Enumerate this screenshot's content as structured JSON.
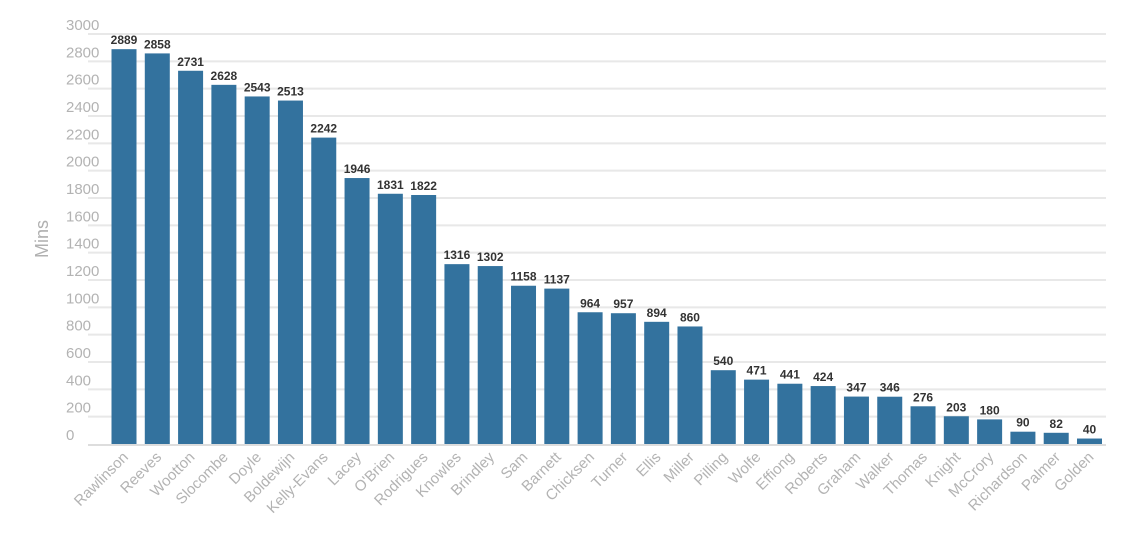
{
  "chart_data": {
    "type": "bar",
    "title": "",
    "xlabel": "",
    "ylabel": "Mins",
    "categories": [
      "Rawlinson",
      "Reeves",
      "Wootton",
      "Slocombe",
      "Doyle",
      "Boldewijn",
      "Kelly-Evans",
      "Lacey",
      "O'Brien",
      "Rodrigues",
      "Knowles",
      "Brindley",
      "Sam",
      "Barnett",
      "Chicksen",
      "Turner",
      "Ellis",
      "Miller",
      "Pilling",
      "Wolfe",
      "Effiong",
      "Roberts",
      "Graham",
      "Walker",
      "Thomas",
      "Knight",
      "McCrory",
      "Richardson",
      "Palmer",
      "Golden"
    ],
    "values": [
      2889,
      2858,
      2731,
      2628,
      2543,
      2513,
      2242,
      1946,
      1831,
      1822,
      1316,
      1302,
      1158,
      1137,
      964,
      957,
      894,
      860,
      540,
      471,
      441,
      424,
      347,
      346,
      276,
      203,
      180,
      90,
      82,
      40
    ],
    "ylim": [
      0,
      3000
    ],
    "yticks": [
      0,
      200,
      400,
      600,
      800,
      1000,
      1200,
      1400,
      1600,
      1800,
      2000,
      2200,
      2400,
      2600,
      2800,
      3000
    ],
    "grid": true,
    "bar_color": "#33729e",
    "data_labels": true
  }
}
